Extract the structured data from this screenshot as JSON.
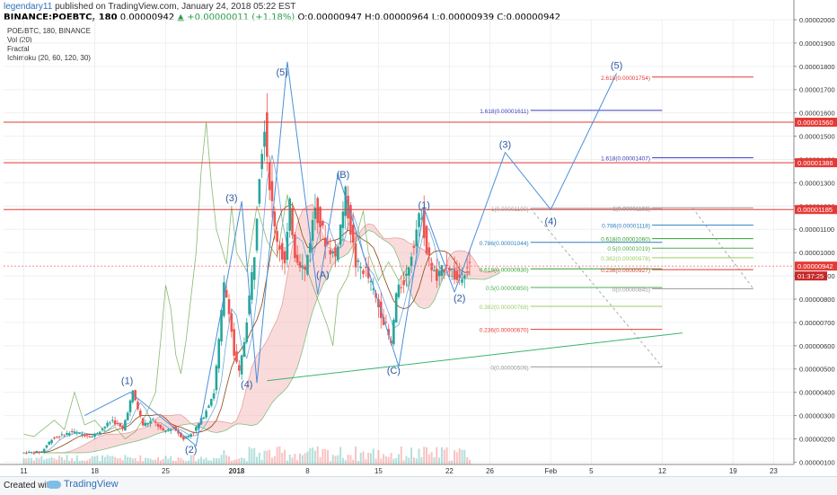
{
  "header": {
    "user": "legendary11",
    "published": "published on TradingView.com, January 24, 2018 05:22 EST",
    "symbol": "BINANCE:POEBTC, 180",
    "last": "0.00000942",
    "change": "▲ +0.00000011 (+1.18%)",
    "o_label": "O:",
    "o": "0.00000947",
    "h_label": "H:",
    "h": "0.00000964",
    "l_label": "L:",
    "l": "0.00000939",
    "c_label": "C:",
    "c": "0.00000942"
  },
  "legend": {
    "items": [
      "POE/BTC, 180, BINANCE",
      "Vol (20)",
      "Fractal",
      "Ichimoku (20, 60, 120, 30)"
    ]
  },
  "footer": {
    "created": "Created with",
    "brand": "TradingView"
  },
  "colors": {
    "up": "#26a69a",
    "down": "#ef5350",
    "hline": "#e53935",
    "wave": "#4a90d9",
    "trend": "#3cb371",
    "tenkan": "#6fa8dc",
    "kijun": "#8b4513",
    "chikou": "#6aa84f",
    "cloud_green": "#a8dba8",
    "cloud_red": "#f4b0b0"
  },
  "chart_data": {
    "type": "candlestick",
    "title": "",
    "ylim": [
      9e-07,
      2e-05
    ],
    "y_ticks": [
      "0.00002000",
      "0.00001900",
      "0.00001800",
      "0.00001700",
      "0.00001600",
      "0.00001500",
      "0.00001400",
      "0.00001300",
      "0.00001200",
      "0.00001100",
      "0.00001000",
      "0.00000900",
      "0.00000800",
      "0.00000700",
      "0.00000600",
      "0.00000500",
      "0.00000400",
      "0.00000300",
      "0.00000200",
      "0.00000100"
    ],
    "x_ticks": [
      {
        "d": 0,
        "label": "11"
      },
      {
        "d": 7,
        "label": "18"
      },
      {
        "d": 14,
        "label": "25"
      },
      {
        "d": 21,
        "label": "2018"
      },
      {
        "d": 28,
        "label": "8"
      },
      {
        "d": 35,
        "label": "15"
      },
      {
        "d": 42,
        "label": "22"
      },
      {
        "d": 46,
        "label": "26"
      },
      {
        "d": 52,
        "label": "Feb"
      },
      {
        "d": 56,
        "label": "5"
      },
      {
        "d": 63,
        "label": "12"
      },
      {
        "d": 70,
        "label": "19"
      },
      {
        "d": 74,
        "label": "23"
      }
    ],
    "price_path": [
      [
        0,
        140
      ],
      [
        2,
        145
      ],
      [
        3,
        200
      ],
      [
        5,
        230
      ],
      [
        7,
        210
      ],
      [
        9,
        280
      ],
      [
        10,
        240
      ],
      [
        11,
        400
      ],
      [
        12,
        260
      ],
      [
        13,
        280
      ],
      [
        14,
        230
      ],
      [
        15,
        250
      ],
      [
        16,
        200
      ],
      [
        17,
        230
      ],
      [
        18,
        300
      ],
      [
        19,
        400
      ],
      [
        19.5,
        620
      ],
      [
        20,
        860
      ],
      [
        20.5,
        760
      ],
      [
        21,
        560
      ],
      [
        21.5,
        480
      ],
      [
        22,
        620
      ],
      [
        23,
        1000
      ],
      [
        23.5,
        1350
      ],
      [
        24,
        1560
      ],
      [
        24.5,
        1300
      ],
      [
        25,
        1100
      ],
      [
        26,
        950
      ],
      [
        26.5,
        1200
      ],
      [
        27,
        1000
      ],
      [
        28,
        920
      ],
      [
        29,
        1200
      ],
      [
        30,
        1050
      ],
      [
        31,
        980
      ],
      [
        32,
        1250
      ],
      [
        33,
        950
      ],
      [
        34,
        920
      ],
      [
        35,
        800
      ],
      [
        36,
        680
      ],
      [
        36.5,
        600
      ],
      [
        37,
        820
      ],
      [
        38,
        900
      ],
      [
        39,
        1100
      ],
      [
        39.5,
        1180
      ],
      [
        40,
        1000
      ],
      [
        41,
        880
      ],
      [
        42,
        960
      ],
      [
        43,
        880
      ],
      [
        44,
        942
      ]
    ],
    "current_price": {
      "value": 9.42e-06,
      "label": "0.00000942",
      "countdown": "01:37:25"
    },
    "horizontal_lines": [
      {
        "value": 1.56e-05,
        "label": "0.00001560"
      },
      {
        "value": 1.386e-05,
        "label": "0.00001386"
      },
      {
        "value": 1.185e-05,
        "label": "0.00001185"
      }
    ],
    "trendline": {
      "from": [
        24,
        4.5e-06
      ],
      "to": [
        65,
        6.55e-06
      ]
    },
    "waves": [
      {
        "points": [
          [
            6,
            300
          ],
          [
            10.5,
            400
          ],
          [
            17,
            170
          ],
          [
            21.5,
            1220
          ],
          [
            23,
            440
          ],
          [
            26,
            1820
          ],
          [
            29,
            820
          ],
          [
            31,
            1340
          ],
          [
            37,
            510
          ],
          [
            39.5,
            1190
          ],
          [
            42.5,
            830
          ]
        ],
        "labels": [
          {
            "d": 10.2,
            "v": 4.35e-06,
            "text": "(1)"
          },
          {
            "d": 16.5,
            "v": 1.4e-06,
            "text": "(2)"
          },
          {
            "d": 20.5,
            "v": 1.22e-05,
            "text": "(3)"
          },
          {
            "d": 22,
            "v": 4.2e-06,
            "text": "(4)"
          },
          {
            "d": 25.5,
            "v": 1.76e-05,
            "text": "(5)"
          },
          {
            "d": 29.5,
            "v": 8.9e-06,
            "text": "(A)"
          },
          {
            "d": 31.5,
            "v": 1.32e-05,
            "text": "(B)"
          },
          {
            "d": 36.5,
            "v": 4.8e-06,
            "text": "(C)"
          },
          {
            "d": 39.5,
            "v": 1.19e-05,
            "text": "(1)"
          },
          {
            "d": 43,
            "v": 7.9e-06,
            "text": "(2)"
          }
        ]
      },
      {
        "points": [
          [
            42.5,
            830
          ],
          [
            47.5,
            1430
          ],
          [
            52,
            1185
          ],
          [
            58.5,
            1770
          ]
        ],
        "labels": [
          {
            "d": 47.5,
            "v": 1.45e-05,
            "text": "(3)"
          },
          {
            "d": 52,
            "v": 1.12e-05,
            "text": "(4)"
          },
          {
            "d": 58.5,
            "v": 1.79e-05,
            "text": "(5)"
          }
        ]
      }
    ],
    "fibonacci": [
      {
        "d0": 50,
        "d1": 63,
        "value": 1.611e-05,
        "label": "1.618(0.00001611)",
        "color": "#3d3dbf"
      },
      {
        "d0": 50,
        "d1": 63,
        "value": 1.19e-05,
        "label": "1(0.00001190)",
        "color": "#999999"
      },
      {
        "d0": 50,
        "d1": 63,
        "value": 1.044e-05,
        "label": "0.786(0.00001044)",
        "color": "#2f7fc1"
      },
      {
        "d0": 50,
        "d1": 63,
        "value": 9.3e-06,
        "label": "0.618(0.00000930)",
        "color": "#2ca02c"
      },
      {
        "d0": 50,
        "d1": 63,
        "value": 8.5e-06,
        "label": "0.5(0.00000850)",
        "color": "#4caf50"
      },
      {
        "d0": 50,
        "d1": 63,
        "value": 7.69e-06,
        "label": "0.382(0.00000769)",
        "color": "#9ccc65"
      },
      {
        "d0": 50,
        "d1": 63,
        "value": 6.7e-06,
        "label": "0.236(0.00000670)",
        "color": "#e53935"
      },
      {
        "d0": 50,
        "d1": 63,
        "value": 5.09e-06,
        "label": "0(0.00000509)",
        "color": "#999999"
      },
      {
        "d0": 62,
        "d1": 72,
        "value": 1.754e-05,
        "label": "2.618(0.00001754)",
        "color": "#e53935"
      },
      {
        "d0": 62,
        "d1": 72,
        "value": 1.407e-05,
        "label": "1.618(0.00001407)",
        "color": "#3d3dbf"
      },
      {
        "d0": 62,
        "d1": 72,
        "value": 1.192e-05,
        "label": "1(0.00001192)",
        "color": "#999999"
      },
      {
        "d0": 62,
        "d1": 72,
        "value": 1.118e-05,
        "label": "0.786(0.00001118)",
        "color": "#2f7fc1"
      },
      {
        "d0": 62,
        "d1": 72,
        "value": 1.06e-05,
        "label": "0.618(0.00001060)",
        "color": "#2ca02c"
      },
      {
        "d0": 62,
        "d1": 72,
        "value": 1.019e-05,
        "label": "0.5(0.00001019)",
        "color": "#4caf50"
      },
      {
        "d0": 62,
        "d1": 72,
        "value": 9.78e-06,
        "label": "0.382(0.00000978)",
        "color": "#9ccc65"
      },
      {
        "d0": 62,
        "d1": 72,
        "value": 9.27e-06,
        "label": "0.236(0.00000927)",
        "color": "#e53935"
      },
      {
        "d0": 62,
        "d1": 72,
        "value": 8.45e-06,
        "label": "0(0.00000845)",
        "color": "#999999"
      }
    ]
  }
}
